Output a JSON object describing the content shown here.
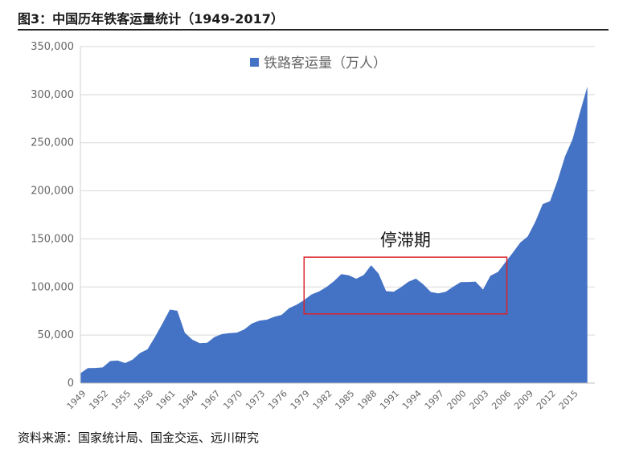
{
  "figure": {
    "title": "图3：中国历年铁客运量统计（1949-2017）",
    "source": "资料来源：国家统计局、国金交运、远川研究"
  },
  "chart_data": {
    "type": "area",
    "series": [
      {
        "name": "铁路客运量（万人）",
        "color": "#4472C4",
        "x": [
          1949,
          1950,
          1951,
          1952,
          1953,
          1954,
          1955,
          1956,
          1957,
          1958,
          1959,
          1960,
          1961,
          1962,
          1963,
          1964,
          1965,
          1966,
          1967,
          1968,
          1969,
          1970,
          1971,
          1972,
          1973,
          1974,
          1975,
          1976,
          1977,
          1978,
          1979,
          1980,
          1981,
          1982,
          1983,
          1984,
          1985,
          1986,
          1987,
          1988,
          1989,
          1990,
          1991,
          1992,
          1993,
          1994,
          1995,
          1996,
          1997,
          1998,
          1999,
          2000,
          2001,
          2002,
          2003,
          2004,
          2005,
          2006,
          2007,
          2008,
          2009,
          2010,
          2011,
          2012,
          2013,
          2014,
          2015,
          2016,
          2017
        ],
        "values": [
          10297,
          15700,
          15800,
          16400,
          23000,
          23500,
          20900,
          24500,
          31300,
          35200,
          48000,
          61800,
          76400,
          75300,
          52400,
          45300,
          41500,
          42000,
          48000,
          51000,
          52000,
          52500,
          56000,
          62000,
          65000,
          66000,
          69000,
          71000,
          78000,
          81500,
          86400,
          92200,
          95300,
          99900,
          106000,
          113400,
          112100,
          108600,
          112400,
          122600,
          113800,
          95700,
          95100,
          99700,
          105500,
          108700,
          102700,
          94800,
          93300,
          95100,
          100200,
          105100,
          105200,
          105600,
          97300,
          111800,
          115600,
          125700,
          135700,
          146200,
          152500,
          167600,
          186200,
          189300,
          210600,
          235700,
          253500,
          281400,
          308400
        ]
      }
    ],
    "xlabel": "",
    "ylabel": "",
    "xlim": [
      1949,
      2017
    ],
    "ylim": [
      0,
      350000
    ],
    "y_ticks": [
      0,
      50000,
      100000,
      150000,
      200000,
      250000,
      300000,
      350000
    ],
    "y_tick_labels": [
      "0",
      "50,000",
      "100,000",
      "150,000",
      "200,000",
      "250,000",
      "300,000",
      "350,000"
    ],
    "x_ticks": [
      1949,
      1952,
      1955,
      1958,
      1961,
      1964,
      1967,
      1970,
      1973,
      1976,
      1979,
      1982,
      1985,
      1988,
      1991,
      1994,
      1997,
      2000,
      2003,
      2006,
      2009,
      2012,
      2015
    ],
    "x_tick_labels": [
      "1949",
      "1952",
      "1955",
      "1958",
      "1961",
      "1964",
      "1967",
      "1970",
      "1973",
      "1976",
      "1979",
      "1982",
      "1985",
      "1988",
      "1991",
      "1994",
      "1997",
      "2000",
      "2003",
      "2006",
      "2009",
      "2012",
      "2015"
    ],
    "grid": "horizontal",
    "legend": {
      "position": "top-center",
      "label": "铁路客运量（万人）"
    },
    "annotation": {
      "text": "停滞期",
      "box": {
        "x_start": 1979.0,
        "x_end": 2006.2,
        "y_low": 72000,
        "y_high": 131000
      },
      "color": "#D9242B"
    }
  }
}
